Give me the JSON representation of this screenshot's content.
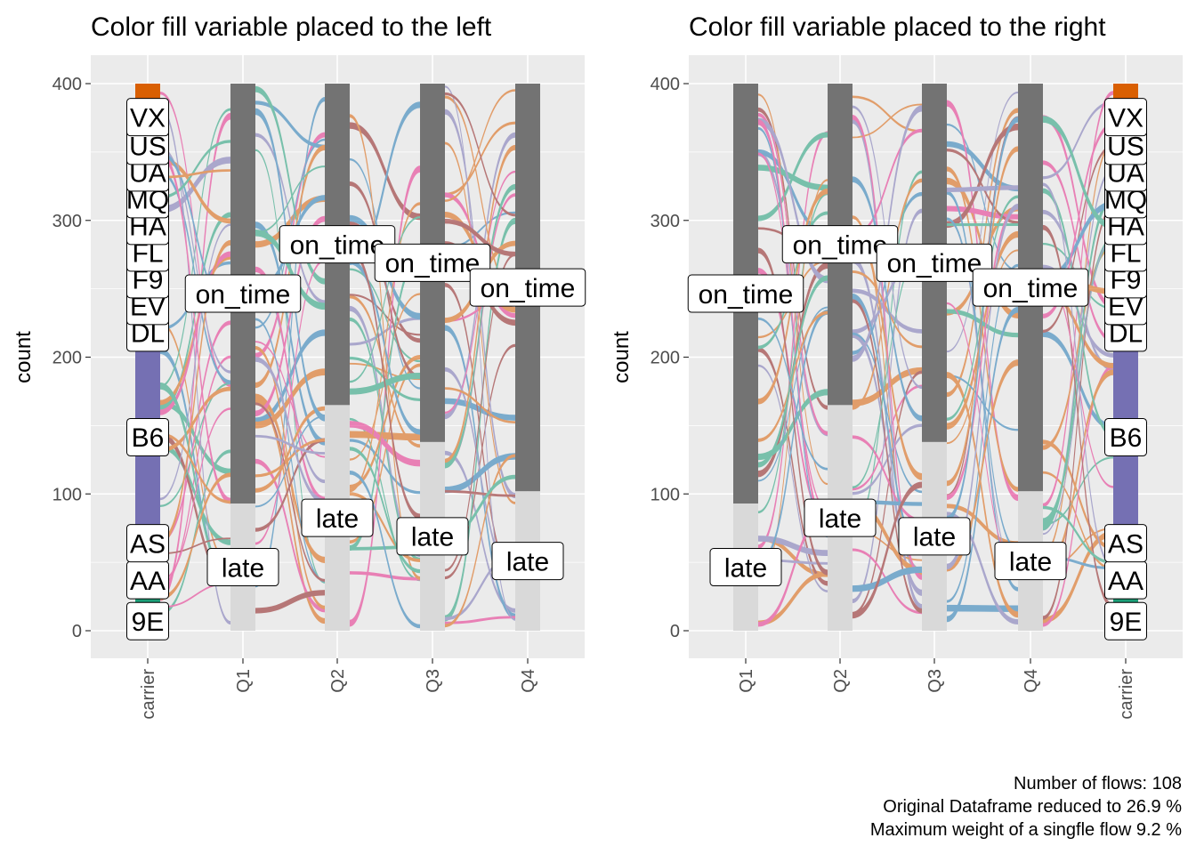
{
  "caption": {
    "line1": "Number of flows: 108",
    "line2": "Original Dataframe reduced to 26.9 %",
    "line3": "Maximum weight of a singfle flow 9.2 %"
  },
  "colors": {
    "panel_bg": "#EBEBEB",
    "grid": "#FFFFFF",
    "on_time_bar": "#737373",
    "late_bar": "#D9D9D9",
    "carrier_colors": [
      "#D95F02",
      "#1B9E77",
      "#E7298A",
      "#7570B3",
      "#8B1A1A",
      "#1F77B4"
    ]
  },
  "chart_data": [
    {
      "type": "alluvial",
      "title": "Color fill variable placed to the left",
      "ylabel": "count",
      "xlabel": "",
      "ylim": [
        0,
        400
      ],
      "yticks": [
        0,
        100,
        200,
        300,
        400
      ],
      "axes": [
        "carrier",
        "Q1",
        "Q2",
        "Q3",
        "Q4"
      ],
      "carrier_position": "left",
      "carriers": [
        {
          "name": "9E",
          "value": 14
        },
        {
          "name": "AA",
          "value": 46
        },
        {
          "name": "AS",
          "value": 8
        },
        {
          "name": "B6",
          "value": 147
        },
        {
          "name": "DL",
          "value": 6
        },
        {
          "name": "EV",
          "value": 23
        },
        {
          "name": "F9",
          "value": 4
        },
        {
          "name": "FL",
          "value": 4
        },
        {
          "name": "HA",
          "value": 5
        },
        {
          "name": "MQ",
          "value": 13
        },
        {
          "name": "UA",
          "value": 5
        },
        {
          "name": "US",
          "value": 76
        },
        {
          "name": "VX",
          "value": 49
        }
      ],
      "quarters": [
        {
          "name": "Q1",
          "late": 93,
          "on_time": 307
        },
        {
          "name": "Q2",
          "late": 165,
          "on_time": 235
        },
        {
          "name": "Q3",
          "late": 138,
          "on_time": 262
        },
        {
          "name": "Q4",
          "late": 102,
          "on_time": 298
        }
      ],
      "stratum_labels": [
        "late",
        "on_time"
      ]
    },
    {
      "type": "alluvial",
      "title": "Color fill variable placed to the right",
      "ylabel": "count",
      "xlabel": "",
      "ylim": [
        0,
        400
      ],
      "yticks": [
        0,
        100,
        200,
        300,
        400
      ],
      "axes": [
        "Q1",
        "Q2",
        "Q3",
        "Q4",
        "carrier"
      ],
      "carrier_position": "right",
      "carriers": [
        {
          "name": "9E",
          "value": 14
        },
        {
          "name": "AA",
          "value": 46
        },
        {
          "name": "AS",
          "value": 8
        },
        {
          "name": "B6",
          "value": 147
        },
        {
          "name": "DL",
          "value": 6
        },
        {
          "name": "EV",
          "value": 23
        },
        {
          "name": "F9",
          "value": 4
        },
        {
          "name": "FL",
          "value": 4
        },
        {
          "name": "HA",
          "value": 5
        },
        {
          "name": "MQ",
          "value": 13
        },
        {
          "name": "UA",
          "value": 5
        },
        {
          "name": "US",
          "value": 76
        },
        {
          "name": "VX",
          "value": 49
        }
      ],
      "quarters": [
        {
          "name": "Q1",
          "late": 93,
          "on_time": 307
        },
        {
          "name": "Q2",
          "late": 165,
          "on_time": 235
        },
        {
          "name": "Q3",
          "late": 138,
          "on_time": 262
        },
        {
          "name": "Q4",
          "late": 102,
          "on_time": 298
        }
      ],
      "stratum_labels": [
        "late",
        "on_time"
      ]
    }
  ]
}
